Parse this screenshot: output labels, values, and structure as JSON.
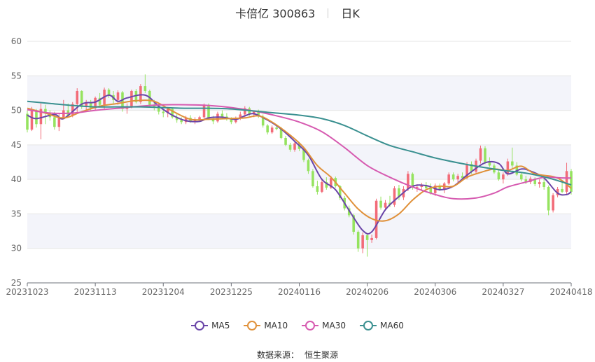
{
  "header": {
    "name": "卡倍亿 300863",
    "period": "日K"
  },
  "source": {
    "label": "数据来源：",
    "value": "恒生聚源"
  },
  "colors": {
    "up": "#f26b78",
    "down": "#95e35f",
    "MA5": "#6a45a8",
    "MA10": "#e0913a",
    "MA30": "#d65ab0",
    "MA60": "#3a9090",
    "band": "#f3f4fa",
    "grid": "#e6e6e6"
  },
  "chart_data": {
    "type": "candlestick",
    "ylim": [
      25,
      60
    ],
    "yticks": [
      25,
      30,
      35,
      40,
      45,
      50,
      55,
      60
    ],
    "xticks": [
      "20231023",
      "20231113",
      "20231204",
      "20231225",
      "20240116",
      "20240206",
      "20240306",
      "20240327",
      "20240418"
    ],
    "xtick_index": [
      0,
      15,
      30,
      45,
      60,
      75,
      90,
      105,
      120
    ],
    "legend": [
      "MA5",
      "MA10",
      "MA30",
      "MA60"
    ],
    "ohlc_note": "[open, high, low, close] per trading day, 121 days",
    "ohlc": [
      [
        49.5,
        50.0,
        46.8,
        47.2
      ],
      [
        47.2,
        50.5,
        47.0,
        50.0
      ],
      [
        50.0,
        50.2,
        47.5,
        48.0
      ],
      [
        48.0,
        51.0,
        45.8,
        50.2
      ],
      [
        50.2,
        50.8,
        48.0,
        49.6
      ],
      [
        49.6,
        50.0,
        48.5,
        49.0
      ],
      [
        49.0,
        49.8,
        47.2,
        47.6
      ],
      [
        47.6,
        49.5,
        47.0,
        49.0
      ],
      [
        49.0,
        51.5,
        48.8,
        50.0
      ],
      [
        50.0,
        51.0,
        49.5,
        49.2
      ],
      [
        49.2,
        51.2,
        49.0,
        50.9
      ],
      [
        50.9,
        53.2,
        49.5,
        52.8
      ],
      [
        52.8,
        52.9,
        50.2,
        50.5
      ],
      [
        50.5,
        51.5,
        50.0,
        51.2
      ],
      [
        51.2,
        51.5,
        50.0,
        50.3
      ],
      [
        50.3,
        52.0,
        50.0,
        51.8
      ],
      [
        51.8,
        52.5,
        50.5,
        50.8
      ],
      [
        50.8,
        53.3,
        50.2,
        53.0
      ],
      [
        53.0,
        53.2,
        51.8,
        52.2
      ],
      [
        52.2,
        52.8,
        51.0,
        51.5
      ],
      [
        51.5,
        52.9,
        50.8,
        52.6
      ],
      [
        52.6,
        52.8,
        49.8,
        50.2
      ],
      [
        50.2,
        51.0,
        49.5,
        50.6
      ],
      [
        50.6,
        53.0,
        50.3,
        52.8
      ],
      [
        52.8,
        53.1,
        51.0,
        51.2
      ],
      [
        51.2,
        53.8,
        50.9,
        53.5
      ],
      [
        53.5,
        55.2,
        52.5,
        52.8
      ],
      [
        52.8,
        53.0,
        50.5,
        50.8
      ],
      [
        50.8,
        51.5,
        50.0,
        50.4
      ],
      [
        50.4,
        51.0,
        49.4,
        49.8
      ],
      [
        49.8,
        50.2,
        49.0,
        49.6
      ],
      [
        49.6,
        50.5,
        49.0,
        50.2
      ],
      [
        50.2,
        50.4,
        48.8,
        49.0
      ],
      [
        49.0,
        49.5,
        48.2,
        48.6
      ],
      [
        48.6,
        49.0,
        48.0,
        48.3
      ],
      [
        48.3,
        49.2,
        48.0,
        48.9
      ],
      [
        48.9,
        49.3,
        48.2,
        48.4
      ],
      [
        48.4,
        49.0,
        48.0,
        48.7
      ],
      [
        48.7,
        49.2,
        48.4,
        49.0
      ],
      [
        49.0,
        51.0,
        48.5,
        50.8
      ],
      [
        50.8,
        51.0,
        48.6,
        48.8
      ],
      [
        48.8,
        49.2,
        48.0,
        48.4
      ],
      [
        48.4,
        49.8,
        48.2,
        49.5
      ],
      [
        49.5,
        50.0,
        48.8,
        49.1
      ],
      [
        49.1,
        49.6,
        48.5,
        48.8
      ],
      [
        48.8,
        49.0,
        48.0,
        48.3
      ],
      [
        48.3,
        49.1,
        48.1,
        48.8
      ],
      [
        48.8,
        49.8,
        48.6,
        49.4
      ],
      [
        49.4,
        50.6,
        49.0,
        50.3
      ],
      [
        50.3,
        50.5,
        49.2,
        49.5
      ],
      [
        49.5,
        50.0,
        49.0,
        49.8
      ],
      [
        49.8,
        50.1,
        48.9,
        49.1
      ],
      [
        49.1,
        49.4,
        47.5,
        47.8
      ],
      [
        47.8,
        48.0,
        46.5,
        46.8
      ],
      [
        46.8,
        47.8,
        46.6,
        47.5
      ],
      [
        47.5,
        47.9,
        47.1,
        47.3
      ],
      [
        47.3,
        47.6,
        45.8,
        46.0
      ],
      [
        46.0,
        46.3,
        44.8,
        45.0
      ],
      [
        45.0,
        45.3,
        44.0,
        44.3
      ],
      [
        44.3,
        45.5,
        44.0,
        45.2
      ],
      [
        45.2,
        45.4,
        44.1,
        44.4
      ],
      [
        44.4,
        44.6,
        42.5,
        42.8
      ],
      [
        42.8,
        43.0,
        40.8,
        41.2
      ],
      [
        41.2,
        41.5,
        38.8,
        39.0
      ],
      [
        39.0,
        39.8,
        37.8,
        38.2
      ],
      [
        38.2,
        40.0,
        38.0,
        39.6
      ],
      [
        39.6,
        40.3,
        38.5,
        38.8
      ],
      [
        38.8,
        40.5,
        38.6,
        40.2
      ],
      [
        40.2,
        40.4,
        38.8,
        39.0
      ],
      [
        39.0,
        39.2,
        37.0,
        37.3
      ],
      [
        37.3,
        37.6,
        35.5,
        35.8
      ],
      [
        35.8,
        36.2,
        34.5,
        34.8
      ],
      [
        34.8,
        35.0,
        32.0,
        32.4
      ],
      [
        32.4,
        32.6,
        29.5,
        30.0
      ],
      [
        30.0,
        32.3,
        29.3,
        31.9
      ],
      [
        31.9,
        32.2,
        28.8,
        31.2
      ],
      [
        31.2,
        32.0,
        30.8,
        31.5
      ],
      [
        31.5,
        37.2,
        31.3,
        36.9
      ],
      [
        36.9,
        37.5,
        35.6,
        35.9
      ],
      [
        35.9,
        37.0,
        35.5,
        36.6
      ],
      [
        36.6,
        37.6,
        36.0,
        36.3
      ],
      [
        36.3,
        39.0,
        36.0,
        38.7
      ],
      [
        38.7,
        39.2,
        37.0,
        37.4
      ],
      [
        37.4,
        39.0,
        37.0,
        38.6
      ],
      [
        38.6,
        41.2,
        38.3,
        40.8
      ],
      [
        40.8,
        41.0,
        38.5,
        38.8
      ],
      [
        38.8,
        39.3,
        38.2,
        38.9
      ],
      [
        38.9,
        39.5,
        38.3,
        39.1
      ],
      [
        39.1,
        39.6,
        38.5,
        38.7
      ],
      [
        38.7,
        39.4,
        37.8,
        38.0
      ],
      [
        38.0,
        39.4,
        37.6,
        39.1
      ],
      [
        39.1,
        39.4,
        38.3,
        38.5
      ],
      [
        38.5,
        39.6,
        38.0,
        39.4
      ],
      [
        39.4,
        41.0,
        39.2,
        40.7
      ],
      [
        40.7,
        41.0,
        39.7,
        40.0
      ],
      [
        40.0,
        40.8,
        39.6,
        40.5
      ],
      [
        40.5,
        41.0,
        39.8,
        40.2
      ],
      [
        40.2,
        42.5,
        40.0,
        42.2
      ],
      [
        42.2,
        42.6,
        40.8,
        41.1
      ],
      [
        41.1,
        43.0,
        40.9,
        42.7
      ],
      [
        42.7,
        44.9,
        42.3,
        44.5
      ],
      [
        44.5,
        44.8,
        42.2,
        42.5
      ],
      [
        42.5,
        43.2,
        41.8,
        42.0
      ],
      [
        42.0,
        42.3,
        40.8,
        41.0
      ],
      [
        41.0,
        41.5,
        39.8,
        40.0
      ],
      [
        40.0,
        41.0,
        39.4,
        40.7
      ],
      [
        40.7,
        43.0,
        40.5,
        42.6
      ],
      [
        42.6,
        44.6,
        41.6,
        42.0
      ],
      [
        42.0,
        42.5,
        40.5,
        40.7
      ],
      [
        40.7,
        41.0,
        39.7,
        40.0
      ],
      [
        40.0,
        40.5,
        39.3,
        39.6
      ],
      [
        39.6,
        40.4,
        39.3,
        40.1
      ],
      [
        40.1,
        40.3,
        39.0,
        39.3
      ],
      [
        39.3,
        40.0,
        38.8,
        39.6
      ],
      [
        39.6,
        40.0,
        38.5,
        38.9
      ],
      [
        38.9,
        39.1,
        34.8,
        35.5
      ],
      [
        35.5,
        38.0,
        35.2,
        37.7
      ],
      [
        37.7,
        38.9,
        37.4,
        38.6
      ],
      [
        38.6,
        39.6,
        38.0,
        38.2
      ],
      [
        38.2,
        42.4,
        37.8,
        41.2
      ],
      [
        41.2,
        41.5,
        37.8,
        38.2
      ]
    ],
    "series": [
      {
        "name": "MA5",
        "color": "#6a45a8",
        "points": [
          [
            0,
            49.3
          ],
          [
            2,
            48.8
          ],
          [
            6,
            49.4
          ],
          [
            8,
            48.8
          ],
          [
            12,
            50.9
          ],
          [
            15,
            51.2
          ],
          [
            18,
            52.2
          ],
          [
            20,
            51.3
          ],
          [
            22,
            51.8
          ],
          [
            26,
            52.2
          ],
          [
            29,
            50.6
          ],
          [
            32,
            49.3
          ],
          [
            35,
            48.5
          ],
          [
            38,
            48.4
          ],
          [
            40,
            48.9
          ],
          [
            43,
            49.0
          ],
          [
            46,
            48.7
          ],
          [
            48,
            49.2
          ],
          [
            50,
            49.5
          ],
          [
            53,
            48.6
          ],
          [
            56,
            47.3
          ],
          [
            59,
            45.5
          ],
          [
            62,
            43.5
          ],
          [
            65,
            40.0
          ],
          [
            68,
            38.5
          ],
          [
            71,
            35.5
          ],
          [
            74,
            32.6
          ],
          [
            76,
            32.4
          ],
          [
            79,
            35.6
          ],
          [
            82,
            37.5
          ],
          [
            85,
            39.0
          ],
          [
            88,
            39.1
          ],
          [
            91,
            38.5
          ],
          [
            94,
            39.0
          ],
          [
            97,
            40.6
          ],
          [
            101,
            42.4
          ],
          [
            104,
            42.3
          ],
          [
            106,
            40.8
          ],
          [
            109,
            41.5
          ],
          [
            111,
            41.2
          ],
          [
            114,
            40.2
          ],
          [
            117,
            38.0
          ],
          [
            119,
            37.8
          ],
          [
            120,
            38.2
          ]
        ]
      },
      {
        "name": "MA10",
        "color": "#e0913a",
        "points": [
          [
            0,
            50.3
          ],
          [
            4,
            49.6
          ],
          [
            8,
            48.9
          ],
          [
            12,
            49.8
          ],
          [
            16,
            50.6
          ],
          [
            20,
            51.0
          ],
          [
            24,
            51.4
          ],
          [
            28,
            51.3
          ],
          [
            32,
            49.9
          ],
          [
            36,
            48.7
          ],
          [
            40,
            48.7
          ],
          [
            44,
            48.8
          ],
          [
            48,
            48.9
          ],
          [
            51,
            49.2
          ],
          [
            54,
            48.3
          ],
          [
            58,
            46.4
          ],
          [
            61,
            44.6
          ],
          [
            64,
            42.0
          ],
          [
            67,
            40.3
          ],
          [
            70,
            38.0
          ],
          [
            73,
            35.7
          ],
          [
            76,
            34.3
          ],
          [
            79,
            34.0
          ],
          [
            82,
            35.0
          ],
          [
            85,
            37.0
          ],
          [
            88,
            38.5
          ],
          [
            91,
            39.0
          ],
          [
            94,
            39.0
          ],
          [
            97,
            40.3
          ],
          [
            100,
            41.0
          ],
          [
            103,
            41.5
          ],
          [
            106,
            41.3
          ],
          [
            109,
            41.9
          ],
          [
            112,
            40.8
          ],
          [
            116,
            40.4
          ],
          [
            118,
            39.8
          ],
          [
            120,
            38.7
          ]
        ]
      },
      {
        "name": "MA30",
        "color": "#d65ab0",
        "points": [
          [
            0,
            50.1
          ],
          [
            5,
            49.6
          ],
          [
            10,
            49.6
          ],
          [
            15,
            50.0
          ],
          [
            20,
            50.3
          ],
          [
            25,
            50.6
          ],
          [
            30,
            50.8
          ],
          [
            35,
            50.8
          ],
          [
            40,
            50.7
          ],
          [
            45,
            50.4
          ],
          [
            50,
            49.9
          ],
          [
            55,
            49.2
          ],
          [
            60,
            48.3
          ],
          [
            65,
            46.9
          ],
          [
            70,
            44.6
          ],
          [
            75,
            42.0
          ],
          [
            80,
            40.3
          ],
          [
            85,
            38.9
          ],
          [
            90,
            37.8
          ],
          [
            94,
            37.2
          ],
          [
            99,
            37.3
          ],
          [
            103,
            38.0
          ],
          [
            106,
            38.9
          ],
          [
            110,
            39.6
          ],
          [
            114,
            40.3
          ],
          [
            118,
            40.2
          ],
          [
            120,
            40.2
          ]
        ]
      },
      {
        "name": "MA60",
        "color": "#3a9090",
        "points": [
          [
            0,
            51.3
          ],
          [
            5,
            51.0
          ],
          [
            10,
            50.7
          ],
          [
            15,
            50.5
          ],
          [
            20,
            50.5
          ],
          [
            25,
            50.5
          ],
          [
            30,
            50.4
          ],
          [
            35,
            50.3
          ],
          [
            40,
            50.3
          ],
          [
            45,
            50.2
          ],
          [
            50,
            49.9
          ],
          [
            55,
            49.6
          ],
          [
            60,
            49.3
          ],
          [
            65,
            48.8
          ],
          [
            70,
            47.8
          ],
          [
            75,
            46.3
          ],
          [
            80,
            44.9
          ],
          [
            85,
            44.0
          ],
          [
            90,
            43.1
          ],
          [
            95,
            42.4
          ],
          [
            100,
            41.8
          ],
          [
            105,
            41.3
          ],
          [
            110,
            40.9
          ],
          [
            115,
            40.2
          ],
          [
            120,
            39.2
          ]
        ]
      }
    ]
  }
}
